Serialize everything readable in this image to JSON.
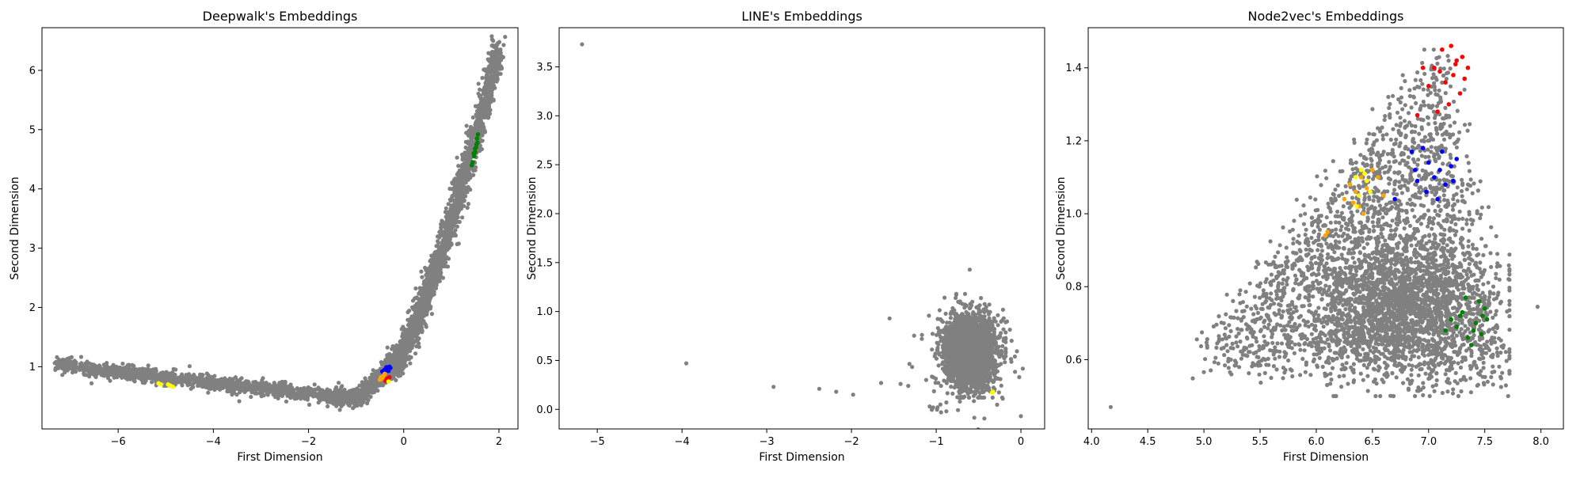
{
  "chart_data": [
    {
      "type": "scatter",
      "title": "Deepwalk's Embeddings",
      "xlabel": "First Dimension",
      "ylabel": "Second Dimension",
      "xlim": [
        -7.6,
        2.4
      ],
      "ylim": [
        -0.05,
        6.72
      ],
      "xticks": [
        -6,
        -4,
        -2,
        0,
        2
      ],
      "yticks": [
        1,
        2,
        3,
        4,
        5,
        6
      ],
      "grid": false,
      "background_color": "#808080",
      "background_description": "dense gray point cloud forming an L-shaped curve from (-7.3, 1.05) down to about (-1.5, 0.45) then rising steeply to (2.0, 6.4)",
      "series": [
        {
          "color": "#0000ff",
          "points": [
            [
              -0.42,
              0.9
            ],
            [
              -0.38,
              0.94
            ],
            [
              -0.34,
              0.97
            ],
            [
              -0.3,
              1.0
            ],
            [
              -0.36,
              0.99
            ],
            [
              -0.4,
              0.95
            ],
            [
              -0.32,
              0.93
            ],
            [
              -0.28,
              0.98
            ],
            [
              -0.45,
              0.92
            ]
          ]
        },
        {
          "color": "#ffa500",
          "points": [
            [
              -0.48,
              0.82
            ],
            [
              -0.45,
              0.8
            ],
            [
              -0.42,
              0.85
            ],
            [
              -0.5,
              0.78
            ],
            [
              -0.4,
              0.88
            ]
          ]
        },
        {
          "color": "#ff0000",
          "points": [
            [
              -0.35,
              0.8
            ],
            [
              -0.3,
              0.82
            ],
            [
              -0.38,
              0.76
            ]
          ]
        },
        {
          "color": "#008000",
          "points": [
            [
              1.45,
              4.45
            ],
            [
              1.48,
              4.55
            ],
            [
              1.5,
              4.62
            ],
            [
              1.52,
              4.7
            ],
            [
              1.55,
              4.78
            ],
            [
              1.54,
              4.85
            ],
            [
              1.56,
              4.92
            ],
            [
              1.5,
              4.68
            ],
            [
              1.47,
              4.6
            ],
            [
              1.53,
              4.75
            ],
            [
              1.43,
              4.4
            ]
          ]
        },
        {
          "color": "#ffff00",
          "points": [
            [
              -5.15,
              0.72
            ],
            [
              -5.1,
              0.7
            ],
            [
              -4.9,
              0.68
            ],
            [
              -4.85,
              0.66
            ],
            [
              -4.95,
              0.7
            ],
            [
              -0.32,
              0.75
            ]
          ]
        }
      ]
    },
    {
      "type": "scatter",
      "title": "LINE's Embeddings",
      "xlabel": "First Dimension",
      "ylabel": "Second Dimension",
      "xlim": [
        -5.45,
        0.28
      ],
      "ylim": [
        -0.2,
        3.9
      ],
      "xticks": [
        -5,
        -4,
        -3,
        -2,
        -1,
        0
      ],
      "yticks": [
        0.0,
        0.5,
        1.0,
        1.5,
        2.0,
        2.5,
        3.0,
        3.5
      ],
      "grid": false,
      "background_color": "#808080",
      "background_description": "dense gray cluster centered near (-0.6, 0.6) spanning x -1.0 to -0.2 and y 0.15 to 1.2, plus a few outliers",
      "outliers": [
        [
          -5.18,
          3.73
        ],
        [
          -3.95,
          0.47
        ],
        [
          -2.92,
          0.23
        ],
        [
          -2.38,
          0.21
        ],
        [
          -2.18,
          0.18
        ],
        [
          -1.98,
          0.15
        ],
        [
          -1.65,
          0.27
        ],
        [
          -1.55,
          0.93
        ],
        [
          -1.42,
          0.26
        ],
        [
          -1.33,
          0.24
        ],
        [
          -0.95,
          0.05
        ],
        [
          -0.88,
          -0.02
        ],
        [
          -0.72,
          0.08
        ],
        [
          -0.02,
          0.33
        ],
        [
          0.0,
          -0.07
        ]
      ],
      "series": [
        {
          "color": "#ffff00",
          "points": [
            [
              -0.34,
              0.17
            ],
            [
              -0.33,
              0.18
            ]
          ]
        }
      ]
    },
    {
      "type": "scatter",
      "title": "Node2vec's Embeddings",
      "xlabel": "First Dimension",
      "ylabel": "Second Dimension",
      "xlim": [
        3.97,
        8.2
      ],
      "ylim": [
        0.41,
        1.51
      ],
      "xticks": [
        4.0,
        4.5,
        5.0,
        5.5,
        6.0,
        6.5,
        7.0,
        7.5,
        8.0
      ],
      "yticks": [
        0.6,
        0.8,
        1.0,
        1.2,
        1.4
      ],
      "grid": false,
      "background_color": "#808080",
      "background_description": "broad gray triangular point cloud spanning x 4.9 to 7.7 and y 0.5 to 1.45, densest around (6.8, 0.75), with outliers at (4.17, 0.47) and (7.97, 0.75)",
      "outliers": [
        [
          4.17,
          0.47
        ],
        [
          7.97,
          0.745
        ]
      ],
      "series": [
        {
          "color": "#ff0000",
          "points": [
            [
              7.2,
              1.46
            ],
            [
              7.25,
              1.42
            ],
            [
              7.3,
              1.43
            ],
            [
              7.35,
              1.4
            ],
            [
              7.22,
              1.38
            ],
            [
              7.1,
              1.39
            ],
            [
              7.05,
              1.4
            ],
            [
              7.15,
              1.36
            ],
            [
              7.0,
              1.35
            ],
            [
              6.95,
              1.4
            ],
            [
              7.28,
              1.33
            ],
            [
              7.18,
              1.3
            ],
            [
              7.08,
              1.28
            ],
            [
              6.9,
              1.27
            ],
            [
              7.32,
              1.37
            ],
            [
              7.12,
              1.45
            ],
            [
              7.24,
              1.41
            ]
          ]
        },
        {
          "color": "#0000ff",
          "points": [
            [
              6.85,
              1.17
            ],
            [
              6.95,
              1.18
            ],
            [
              7.0,
              1.14
            ],
            [
              7.1,
              1.12
            ],
            [
              7.2,
              1.13
            ],
            [
              7.25,
              1.15
            ],
            [
              7.05,
              1.1
            ],
            [
              6.9,
              1.09
            ],
            [
              7.15,
              1.08
            ],
            [
              6.98,
              1.06
            ],
            [
              7.08,
              1.04
            ],
            [
              7.22,
              1.09
            ],
            [
              6.7,
              1.04
            ],
            [
              6.88,
              1.12
            ],
            [
              7.12,
              1.17
            ]
          ]
        },
        {
          "color": "#ffa500",
          "points": [
            [
              6.3,
              1.08
            ],
            [
              6.35,
              1.06
            ],
            [
              6.4,
              1.1
            ],
            [
              6.45,
              1.07
            ],
            [
              6.33,
              1.03
            ],
            [
              6.38,
              1.02
            ],
            [
              6.5,
              1.12
            ],
            [
              6.55,
              1.1
            ],
            [
              6.6,
              1.05
            ],
            [
              6.08,
              0.94
            ],
            [
              6.1,
              0.95
            ],
            [
              6.25,
              1.04
            ],
            [
              6.42,
              1.0
            ]
          ]
        },
        {
          "color": "#ffff00",
          "points": [
            [
              6.35,
              1.1
            ],
            [
              6.4,
              1.12
            ],
            [
              6.45,
              1.09
            ],
            [
              6.38,
              1.05
            ],
            [
              6.36,
              1.02
            ],
            [
              6.43,
              1.11
            ],
            [
              6.48,
              1.06
            ]
          ]
        },
        {
          "color": "#008000",
          "points": [
            [
              7.45,
              0.76
            ],
            [
              7.5,
              0.74
            ],
            [
              7.48,
              0.72
            ],
            [
              7.42,
              0.7
            ],
            [
              7.4,
              0.68
            ],
            [
              7.35,
              0.66
            ],
            [
              7.3,
              0.73
            ],
            [
              7.25,
              0.69
            ],
            [
              7.2,
              0.71
            ],
            [
              7.38,
              0.64
            ],
            [
              7.33,
              0.77
            ],
            [
              7.28,
              0.72
            ],
            [
              7.15,
              0.68
            ],
            [
              7.47,
              0.67
            ],
            [
              7.52,
              0.71
            ]
          ]
        }
      ]
    }
  ]
}
